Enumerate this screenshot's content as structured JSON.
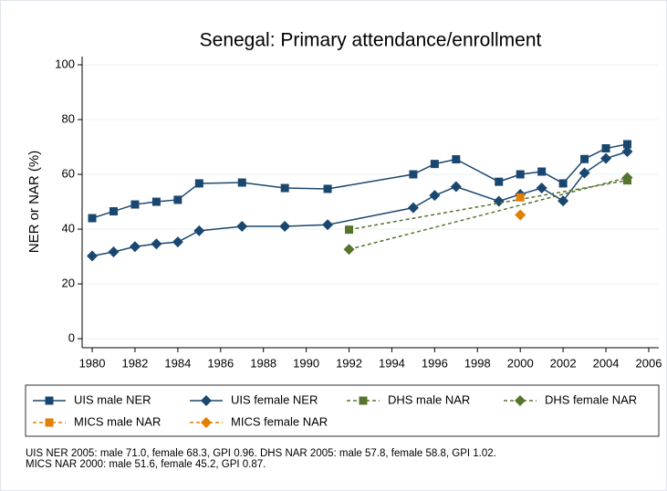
{
  "chart_data": {
    "type": "line",
    "title": "Senegal: Primary attendance/enrollment",
    "y_label": "NER or NAR (%)",
    "xlim": [
      1979.53,
      2006.47
    ],
    "ylim": [
      -3.3,
      103
    ],
    "xticks": [
      1980,
      1982,
      1984,
      1986,
      1988,
      1990,
      1992,
      1994,
      1996,
      1998,
      2000,
      2002,
      2004,
      2006
    ],
    "yticks": [
      0,
      20,
      40,
      60,
      80,
      100
    ],
    "grid": true,
    "series": [
      {
        "name": "UIS male NER",
        "color": "#1a476f",
        "marker": "square",
        "dashed": false,
        "x": [
          1980,
          1981,
          1982,
          1983,
          1984,
          1985,
          1987,
          1989,
          1991,
          1995,
          1996,
          1997,
          1999,
          2000,
          2001,
          2002,
          2003,
          2004,
          2005
        ],
        "values": [
          44,
          46.5,
          49,
          50,
          50.7,
          56.7,
          57,
          55,
          54.7,
          60,
          63.8,
          65.5,
          57.3,
          60,
          61,
          56.7,
          65.6,
          69.5,
          71.0
        ]
      },
      {
        "name": "UIS female NER",
        "color": "#1a476f",
        "marker": "diamond",
        "dashed": false,
        "x": [
          1980,
          1981,
          1982,
          1983,
          1984,
          1985,
          1987,
          1989,
          1991,
          1995,
          1996,
          1997,
          1999,
          2000,
          2001,
          2002,
          2003,
          2004,
          2005
        ],
        "values": [
          30.2,
          31.7,
          33.6,
          34.6,
          35.3,
          39.4,
          41,
          41,
          41.6,
          47.8,
          52.3,
          55.5,
          50.2,
          52.7,
          55,
          50.3,
          60.5,
          65.8,
          68.3
        ]
      },
      {
        "name": "DHS male NAR",
        "color": "#55752f",
        "marker": "square",
        "dashed": true,
        "x": [
          1992,
          2005
        ],
        "values": [
          39.8,
          57.8
        ]
      },
      {
        "name": "DHS female NAR",
        "color": "#55752f",
        "marker": "diamond",
        "dashed": true,
        "x": [
          1992,
          2005
        ],
        "values": [
          32.6,
          58.8
        ]
      },
      {
        "name": "MICS male NAR",
        "color": "#e37e00",
        "marker": "square",
        "dashed": true,
        "x": [
          2000
        ],
        "values": [
          51.6
        ]
      },
      {
        "name": "MICS female NAR",
        "color": "#e37e00",
        "marker": "diamond",
        "dashed": true,
        "x": [
          2000
        ],
        "values": [
          45.2
        ]
      }
    ],
    "notes": [
      "UIS NER 2005: male 71.0, female 68.3, GPI 0.96. DHS NAR 2005: male 57.8, female 58.8, GPI 1.02.",
      "MICS NAR 2000: male 51.6, female 45.2, GPI 0.87."
    ]
  }
}
